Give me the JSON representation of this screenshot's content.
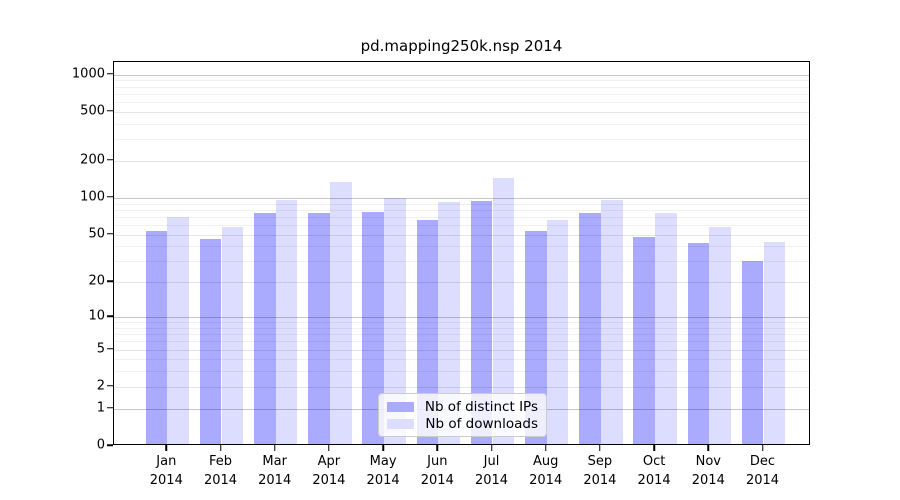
{
  "title": "pd.mapping250k.nsp 2014",
  "chart_data": {
    "type": "bar",
    "title": "pd.mapping250k.nsp 2014",
    "categories": [
      "Jan 2014",
      "Feb 2014",
      "Mar 2014",
      "Apr 2014",
      "May 2014",
      "Jun 2014",
      "Jul 2014",
      "Aug 2014",
      "Sep 2014",
      "Oct 2014",
      "Nov 2014",
      "Dec 2014"
    ],
    "series": [
      {
        "name": "Nb of distinct IPs",
        "color": "#aaaaff",
        "values": [
          52,
          44,
          72,
          72,
          74,
          64,
          91,
          52,
          72,
          46,
          41,
          29
        ]
      },
      {
        "name": "Nb of downloads",
        "color": "#ddddff",
        "values": [
          67,
          56,
          92,
          130,
          96,
          89,
          140,
          63,
          93,
          72,
          56,
          42
        ]
      }
    ],
    "xlabel": "",
    "ylabel": "",
    "yscale": "log1p",
    "ylim": [
      0,
      1265
    ],
    "y_ticks": [
      0,
      1,
      2,
      5,
      10,
      20,
      50,
      100,
      200,
      500,
      1000
    ],
    "y_major_ticks": [
      1,
      10,
      100,
      1000
    ],
    "y_minor_unlabeled_ticks": [
      3,
      4,
      6,
      7,
      8,
      9,
      30,
      40,
      60,
      70,
      80,
      90,
      300,
      400,
      600,
      700,
      800,
      900
    ],
    "grid": true,
    "legend_position": "lower-center-inside"
  },
  "legend": {
    "items": [
      {
        "label": "Nb of distinct IPs",
        "color": "#aaaaff"
      },
      {
        "label": "Nb of downloads",
        "color": "#ddddff"
      }
    ]
  },
  "colors": {
    "bar_distinct_ips": "#aaaaff",
    "bar_downloads": "#ddddff",
    "background": "#ffffff",
    "axis": "#000000"
  }
}
